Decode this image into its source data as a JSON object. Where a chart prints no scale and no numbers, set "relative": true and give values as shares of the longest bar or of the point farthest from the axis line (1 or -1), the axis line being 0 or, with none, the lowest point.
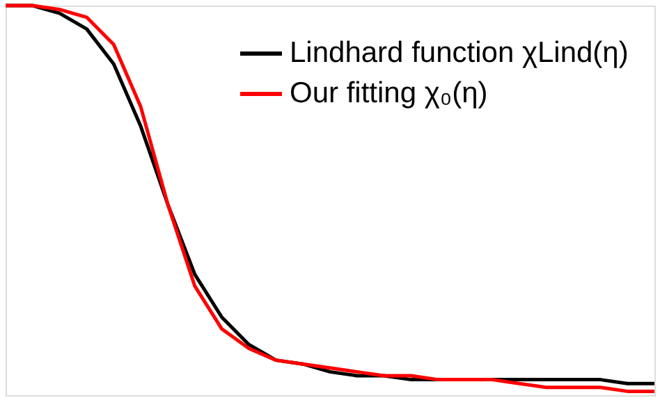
{
  "chart_data": {
    "type": "line",
    "relative": true,
    "tick_labels": false,
    "legend": "top right",
    "grid": false,
    "marker": "none",
    "line_style": "solid",
    "categories": [
      null,
      null,
      null,
      null,
      null,
      null,
      null,
      null,
      null,
      null,
      null,
      null,
      null,
      null,
      null,
      null,
      null,
      null,
      null,
      null,
      null,
      null,
      null,
      null,
      null
    ],
    "series": [
      {
        "name": "Lindhard function χLind(η)",
        "color": "#000000",
        "values": [
          1.0,
          1.0,
          0.98,
          0.94,
          0.85,
          0.69,
          0.49,
          0.31,
          0.2,
          0.13,
          0.09,
          0.08,
          0.06,
          0.05,
          0.05,
          0.04,
          0.04,
          0.04,
          0.04,
          0.04,
          0.04,
          0.04,
          0.04,
          0.03,
          0.03
        ]
      },
      {
        "name": "Our fitting χ₀(η)",
        "color": "#ff0000",
        "values": [
          1.0,
          1.0,
          0.99,
          0.97,
          0.9,
          0.74,
          0.49,
          0.28,
          0.17,
          0.12,
          0.09,
          0.08,
          0.07,
          0.06,
          0.05,
          0.05,
          0.04,
          0.04,
          0.04,
          0.03,
          0.02,
          0.02,
          0.02,
          0.01,
          0.01
        ]
      }
    ]
  }
}
